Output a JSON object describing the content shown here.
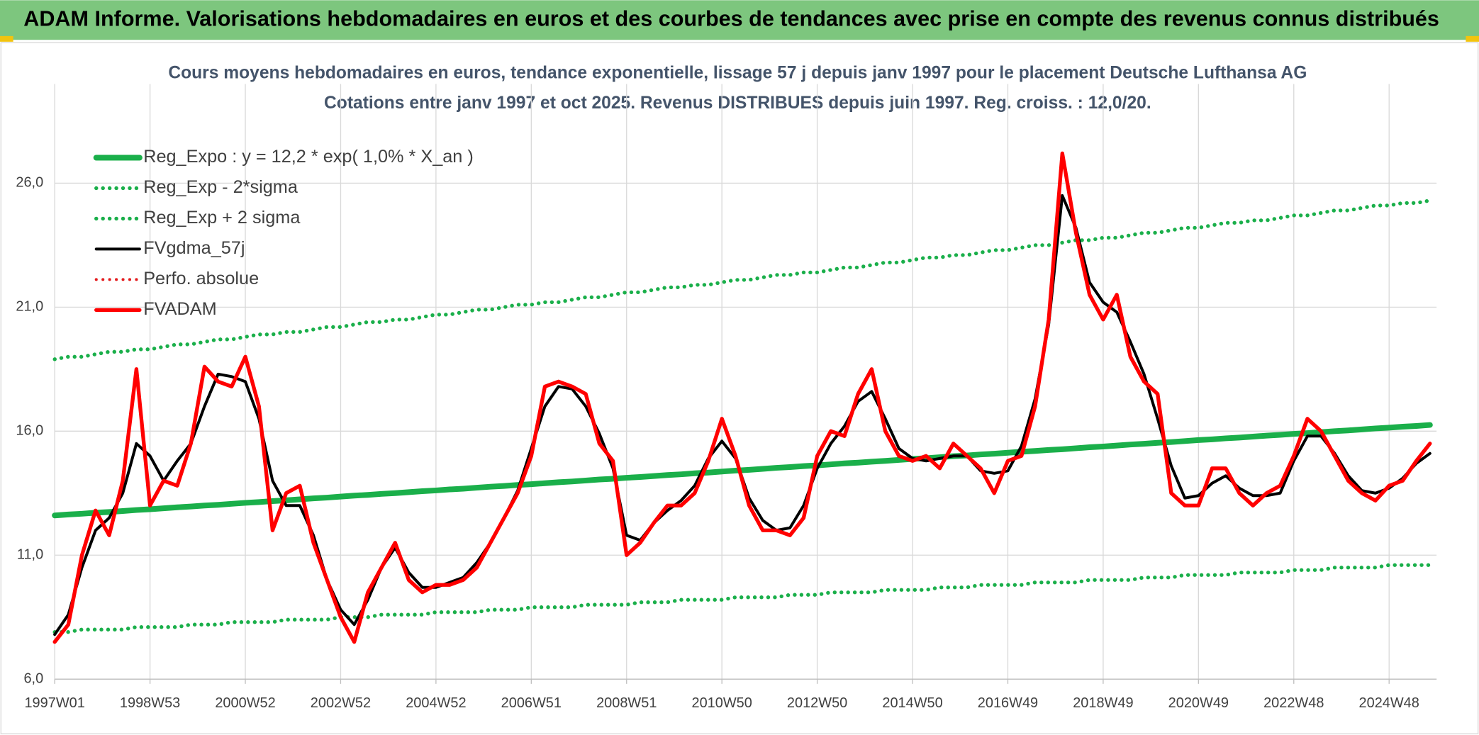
{
  "header": {
    "title": "ADAM Informe. Valorisations hebdomadaires en euros et des courbes de tendances avec prise en compte des revenus connus distribués"
  },
  "chart_data": {
    "type": "line",
    "title": "Cours moyens hebdomadaires en euros, tendance exponentielle, lissage 57 j depuis janv 1997 pour le placement Deutsche Lufthansa AG",
    "subtitle": "Cotations entre janv 1997 et oct 2025. Revenus DISTRIBUES depuis juin 1997. Reg. croiss. : 12,0/20.",
    "categories": [
      "1997W01",
      null,
      null,
      null,
      null,
      null,
      null,
      "1998W53",
      null,
      null,
      null,
      null,
      null,
      null,
      "2000W52",
      null,
      null,
      null,
      null,
      null,
      null,
      "2002W52",
      null,
      null,
      null,
      null,
      null,
      null,
      "2004W52",
      null,
      null,
      null,
      null,
      null,
      null,
      "2006W51",
      null,
      null,
      null,
      null,
      null,
      null,
      "2008W51",
      null,
      null,
      null,
      null,
      null,
      null,
      "2010W50",
      null,
      null,
      null,
      null,
      null,
      null,
      "2012W50",
      null,
      null,
      null,
      null,
      null,
      null,
      "2014W50",
      null,
      null,
      null,
      null,
      null,
      null,
      "2016W49",
      null,
      null,
      null,
      null,
      null,
      null,
      "2018W49",
      null,
      null,
      null,
      null,
      null,
      null,
      "2020W49",
      null,
      null,
      null,
      null,
      null,
      null,
      "2022W48",
      null,
      null,
      null,
      null,
      null,
      null,
      "2024W48",
      null,
      null,
      null
    ],
    "ylim": [
      6,
      30
    ],
    "yticks": [
      {
        "value": 6,
        "label": "6,0"
      },
      {
        "value": 11,
        "label": "11,0"
      },
      {
        "value": 16,
        "label": "16,0"
      },
      {
        "value": 21,
        "label": "21,0"
      },
      {
        "value": 26,
        "label": "26,0"
      }
    ],
    "grid": true,
    "legend": "top-left",
    "series": [
      {
        "name": "Reg_Expo : y = 12,2 * exp( 1,0% *  X_an )",
        "color": "#1aaf4a",
        "line_style": "solid",
        "width": 6,
        "values": [
          12.6,
          12.64,
          12.67,
          12.71,
          12.74,
          12.78,
          12.82,
          12.85,
          12.89,
          12.93,
          12.96,
          13.0,
          13.03,
          13.07,
          13.11,
          13.14,
          13.18,
          13.21,
          13.25,
          13.29,
          13.32,
          13.36,
          13.4,
          13.43,
          13.47,
          13.5,
          13.54,
          13.58,
          13.61,
          13.65,
          13.68,
          13.72,
          13.76,
          13.79,
          13.83,
          13.86,
          13.9,
          13.94,
          13.97,
          14.01,
          14.05,
          14.08,
          14.12,
          14.15,
          14.19,
          14.23,
          14.26,
          14.3,
          14.33,
          14.37,
          14.41,
          14.44,
          14.48,
          14.52,
          14.55,
          14.59,
          14.62,
          14.66,
          14.7,
          14.73,
          14.77,
          14.8,
          14.84,
          14.88,
          14.91,
          14.95,
          14.99,
          15.02,
          15.06,
          15.09,
          15.13,
          15.17,
          15.2,
          15.24,
          15.27,
          15.31,
          15.35,
          15.38,
          15.42,
          15.46,
          15.49,
          15.53,
          15.56,
          15.6,
          15.64,
          15.67,
          15.71,
          15.74,
          15.78,
          15.82,
          15.85,
          15.89,
          15.92,
          15.96,
          16.0,
          16.03,
          16.07,
          16.11,
          16.14,
          16.18,
          16.21,
          16.25
        ]
      },
      {
        "name": "Reg_Exp - 2*sigma",
        "color": "#1aaf4a",
        "line_style": "dotted",
        "width": 4,
        "values": [
          7.9,
          7.9,
          8.0,
          8.0,
          8.0,
          8.0,
          8.1,
          8.1,
          8.1,
          8.1,
          8.2,
          8.2,
          8.2,
          8.3,
          8.3,
          8.3,
          8.3,
          8.4,
          8.4,
          8.4,
          8.4,
          8.5,
          8.5,
          8.5,
          8.6,
          8.6,
          8.6,
          8.6,
          8.7,
          8.7,
          8.7,
          8.7,
          8.8,
          8.8,
          8.8,
          8.9,
          8.9,
          8.9,
          8.9,
          9.0,
          9.0,
          9.0,
          9.0,
          9.1,
          9.1,
          9.1,
          9.2,
          9.2,
          9.2,
          9.2,
          9.3,
          9.3,
          9.3,
          9.3,
          9.4,
          9.4,
          9.4,
          9.5,
          9.5,
          9.5,
          9.5,
          9.6,
          9.6,
          9.6,
          9.6,
          9.7,
          9.7,
          9.7,
          9.8,
          9.8,
          9.8,
          9.8,
          9.9,
          9.9,
          9.9,
          9.9,
          10.0,
          10.0,
          10.0,
          10.0,
          10.1,
          10.1,
          10.1,
          10.2,
          10.2,
          10.2,
          10.2,
          10.3,
          10.3,
          10.3,
          10.3,
          10.4,
          10.4,
          10.4,
          10.5,
          10.5,
          10.5,
          10.5,
          10.6,
          10.6,
          10.6,
          10.6
        ]
      },
      {
        "name": "Reg_Exp + 2 sigma",
        "color": "#1aaf4a",
        "line_style": "dotted",
        "width": 4,
        "values": [
          18.9,
          19.0,
          19.0,
          19.1,
          19.2,
          19.2,
          19.3,
          19.3,
          19.4,
          19.5,
          19.5,
          19.6,
          19.7,
          19.7,
          19.8,
          19.9,
          19.9,
          20.0,
          20.0,
          20.1,
          20.2,
          20.2,
          20.3,
          20.4,
          20.4,
          20.5,
          20.5,
          20.6,
          20.7,
          20.7,
          20.8,
          20.9,
          20.9,
          21.0,
          21.1,
          21.1,
          21.2,
          21.2,
          21.3,
          21.4,
          21.4,
          21.5,
          21.6,
          21.6,
          21.7,
          21.8,
          21.8,
          21.9,
          21.9,
          22.0,
          22.1,
          22.1,
          22.2,
          22.3,
          22.3,
          22.4,
          22.4,
          22.5,
          22.6,
          22.6,
          22.7,
          22.8,
          22.8,
          22.9,
          23.0,
          23.0,
          23.1,
          23.1,
          23.2,
          23.3,
          23.3,
          23.4,
          23.5,
          23.5,
          23.6,
          23.7,
          23.7,
          23.8,
          23.8,
          23.9,
          24.0,
          24.0,
          24.1,
          24.2,
          24.2,
          24.3,
          24.4,
          24.4,
          24.5,
          24.5,
          24.6,
          24.7,
          24.7,
          24.8,
          24.9,
          24.9,
          25.0,
          25.1,
          25.1,
          25.2,
          25.2,
          25.3
        ]
      },
      {
        "name": "FVgdma_57j",
        "color": "#000000",
        "line_style": "solid",
        "width": 3,
        "values": [
          7.8,
          8.6,
          10.5,
          12.0,
          12.5,
          13.5,
          15.5,
          15.0,
          14.0,
          14.8,
          15.5,
          17.0,
          18.3,
          18.2,
          18.0,
          16.5,
          14.0,
          13.0,
          13.0,
          11.8,
          10.0,
          8.8,
          8.2,
          9.2,
          10.5,
          11.3,
          10.3,
          9.7,
          9.7,
          9.9,
          10.1,
          10.7,
          11.5,
          12.5,
          13.6,
          15.3,
          17.0,
          17.8,
          17.7,
          17.0,
          15.9,
          14.5,
          11.8,
          11.6,
          12.3,
          12.8,
          13.2,
          13.8,
          14.9,
          15.6,
          14.9,
          13.3,
          12.4,
          12.0,
          12.1,
          13.0,
          14.5,
          15.5,
          16.2,
          17.2,
          17.6,
          16.5,
          15.3,
          14.9,
          14.8,
          14.9,
          15.0,
          15.0,
          14.4,
          14.3,
          14.4,
          15.4,
          17.3,
          20.3,
          25.5,
          24.2,
          22.0,
          21.2,
          20.8,
          19.6,
          18.3,
          16.5,
          14.6,
          13.3,
          13.4,
          13.9,
          14.2,
          13.7,
          13.4,
          13.4,
          13.5,
          14.8,
          15.8,
          15.8,
          15.1,
          14.2,
          13.6,
          13.5,
          13.7,
          14.1,
          14.7,
          15.1
        ]
      },
      {
        "name": "Perfo. absolue",
        "color": "#e31a1c",
        "line_style": "dotted",
        "width": 3
      },
      {
        "name": "FVADAM",
        "color": "#ff0000",
        "line_style": "solid",
        "width": 4,
        "values": [
          7.5,
          8.2,
          11.0,
          12.8,
          11.8,
          14.0,
          18.5,
          13.0,
          14.0,
          13.8,
          15.5,
          18.6,
          18.0,
          17.8,
          19.0,
          17.0,
          12.0,
          13.5,
          13.8,
          11.5,
          10.0,
          8.5,
          7.5,
          9.5,
          10.5,
          11.5,
          10.0,
          9.5,
          9.8,
          9.8,
          10.0,
          10.5,
          11.5,
          12.5,
          13.5,
          15.0,
          17.8,
          18.0,
          17.8,
          17.5,
          15.5,
          14.8,
          11.0,
          11.5,
          12.3,
          13.0,
          13.0,
          13.5,
          14.8,
          16.5,
          15.0,
          13.0,
          12.0,
          12.0,
          11.8,
          12.5,
          15.0,
          16.0,
          15.8,
          17.5,
          18.5,
          16.0,
          15.0,
          14.8,
          15.0,
          14.5,
          15.5,
          15.0,
          14.5,
          13.5,
          14.8,
          15.0,
          17.0,
          20.5,
          27.2,
          24.0,
          21.5,
          20.5,
          21.5,
          19.0,
          18.0,
          17.5,
          13.5,
          13.0,
          13.0,
          14.5,
          14.5,
          13.5,
          13.0,
          13.5,
          13.8,
          15.0,
          16.5,
          16.0,
          15.0,
          14.0,
          13.5,
          13.2,
          13.8,
          14.0,
          14.8,
          15.5
        ]
      }
    ]
  }
}
